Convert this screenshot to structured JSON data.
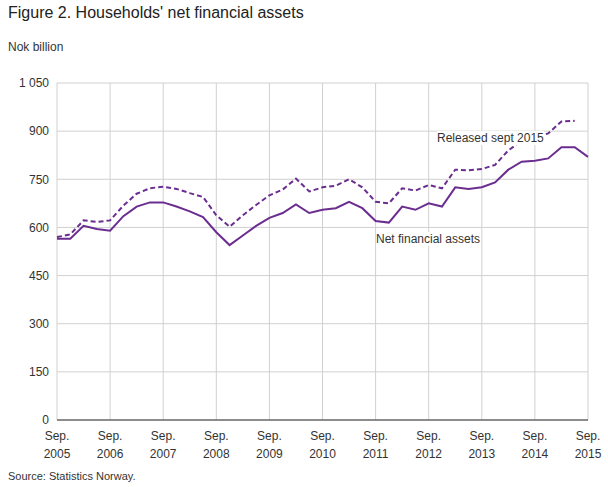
{
  "chart_data": {
    "type": "line",
    "title": "Figure 2. Households' net financial assets",
    "y_label": "Nok billion",
    "source": "Source: Statistics Norway.",
    "categories": [
      "Sep.\n2005",
      null,
      null,
      null,
      "Sep.\n2006",
      null,
      null,
      null,
      "Sep.\n2007",
      null,
      null,
      null,
      "Sep.\n2008",
      null,
      null,
      null,
      "Sep.\n2009",
      null,
      null,
      null,
      "Sep.\n2010",
      null,
      null,
      null,
      "Sep.\n2011",
      null,
      null,
      null,
      "Sep.\n2012",
      null,
      null,
      null,
      "Sep.\n2013",
      null,
      null,
      null,
      "Sep.\n2014",
      null,
      null,
      null,
      "Sep.\n2015"
    ],
    "series": [
      {
        "name": "Released sept 2015",
        "color": "#6b2d8f",
        "line_style": "dashed",
        "values": [
          570,
          578,
          622,
          617,
          622,
          668,
          705,
          722,
          727,
          720,
          707,
          695,
          638,
          602,
          638,
          670,
          700,
          718,
          752,
          712,
          725,
          730,
          750,
          725,
          680,
          675,
          722,
          715,
          732,
          722,
          780,
          778,
          782,
          795,
          840,
          870,
          880,
          893,
          930,
          932,
          null
        ]
      },
      {
        "name": "Net financial assets",
        "color": "#6b2d8f",
        "line_style": "solid",
        "values": [
          565,
          565,
          605,
          595,
          590,
          635,
          665,
          678,
          678,
          665,
          650,
          632,
          585,
          545,
          575,
          605,
          630,
          645,
          672,
          645,
          655,
          660,
          680,
          660,
          620,
          615,
          665,
          655,
          675,
          665,
          725,
          720,
          725,
          740,
          780,
          805,
          808,
          815,
          850,
          850,
          820
        ]
      }
    ],
    "ylim": [
      0,
      1050
    ],
    "yticks": [
      0,
      150,
      300,
      450,
      600,
      750,
      900,
      {
        "value": 1050,
        "label": "1 050"
      }
    ],
    "grid": true
  }
}
